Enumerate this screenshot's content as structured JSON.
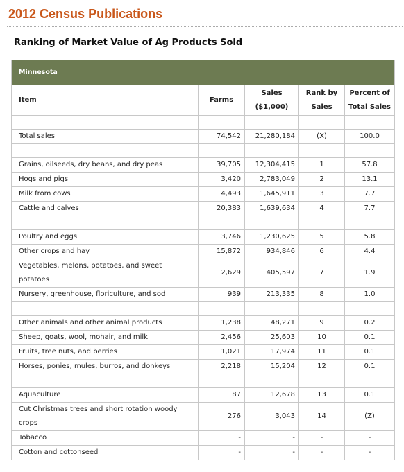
{
  "header": {
    "title": "2012 Census Publications"
  },
  "table": {
    "title": "Ranking of Market Value of Ag Products Sold",
    "state": "Minnesota",
    "columns": [
      [
        "Item"
      ],
      [
        "Farms"
      ],
      [
        "Sales",
        "($1,000)"
      ],
      [
        "Rank by",
        "Sales"
      ],
      [
        "Percent of",
        "Total Sales"
      ]
    ],
    "groups": [
      [
        [
          "Total sales",
          "74,542",
          "21,280,184",
          "(X)",
          "100.0"
        ]
      ],
      [
        [
          "Grains, oilseeds, dry beans, and dry peas",
          "39,705",
          "12,304,415",
          "1",
          "57.8"
        ],
        [
          "Hogs and pigs",
          "3,420",
          "2,783,049",
          "2",
          "13.1"
        ],
        [
          "Milk from cows",
          "4,493",
          "1,645,911",
          "3",
          "7.7"
        ],
        [
          "Cattle and calves",
          "20,383",
          "1,639,634",
          "4",
          "7.7"
        ]
      ],
      [
        [
          "Poultry and eggs",
          "3,746",
          "1,230,625",
          "5",
          "5.8"
        ],
        [
          "Other crops and hay",
          "15,872",
          "934,846",
          "6",
          "4.4"
        ],
        [
          "Vegetables, melons, potatoes, and sweet potatoes",
          "2,629",
          "405,597",
          "7",
          "1.9"
        ],
        [
          "Nursery, greenhouse, floriculture, and sod",
          "939",
          "213,335",
          "8",
          "1.0"
        ]
      ],
      [
        [
          "Other animals and other animal products",
          "1,238",
          "48,271",
          "9",
          "0.2"
        ],
        [
          "Sheep, goats, wool, mohair, and milk",
          "2,456",
          "25,603",
          "10",
          "0.1"
        ],
        [
          "Fruits, tree nuts, and berries",
          "1,021",
          "17,974",
          "11",
          "0.1"
        ],
        [
          "Horses, ponies, mules, burros, and donkeys",
          "2,218",
          "15,204",
          "12",
          "0.1"
        ]
      ],
      [
        [
          "Aquaculture",
          "87",
          "12,678",
          "13",
          "0.1"
        ],
        [
          "Cut Christmas trees and short rotation woody crops",
          "276",
          "3,043",
          "14",
          "(Z)"
        ],
        [
          "Tobacco",
          "-",
          "-",
          "-",
          "-"
        ],
        [
          "Cotton and cottonseed",
          "-",
          "-",
          "-",
          "-"
        ]
      ]
    ]
  }
}
